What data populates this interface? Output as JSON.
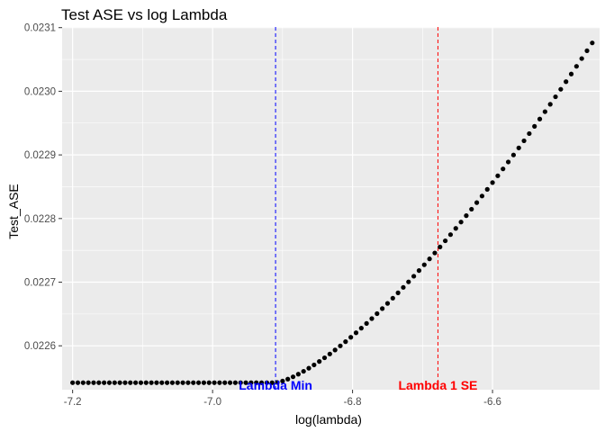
{
  "chart_data": {
    "type": "scatter",
    "title": "Test ASE vs log Lambda",
    "xlabel": "log(lambda)",
    "ylabel": "Test_ASE",
    "xlim": [
      -7.215,
      -6.447
    ],
    "ylim": [
      0.022531,
      0.023101
    ],
    "x_ticks": [
      -7.2,
      -7.0,
      -6.8,
      -6.6
    ],
    "x_tick_labels": [
      "-7.2",
      "-7.0",
      "-6.8",
      "-6.6"
    ],
    "y_ticks": [
      0.0226,
      0.0227,
      0.0228,
      0.0229,
      0.023,
      0.0231
    ],
    "y_tick_labels": [
      "0.0226",
      "0.0227",
      "0.0228",
      "0.0229",
      "0.0230",
      "0.0231"
    ],
    "grid": true,
    "point_color": "#000000",
    "panel_background": "#ebebeb",
    "series": [
      {
        "x_start": -7.2,
        "x_step": 0.0075,
        "count": 100,
        "flat_until_x": -6.91,
        "flat_y": 0.022542,
        "end_y": 0.023076,
        "curve_exponent": 1.4
      }
    ],
    "reference_lines": [
      {
        "x": -6.91,
        "color": "#0000ff",
        "style": "dashed",
        "label": "Lambda Min"
      },
      {
        "x": -6.678,
        "color": "#ff0000",
        "style": "dashed",
        "label": "Lambda 1 SE"
      }
    ]
  }
}
